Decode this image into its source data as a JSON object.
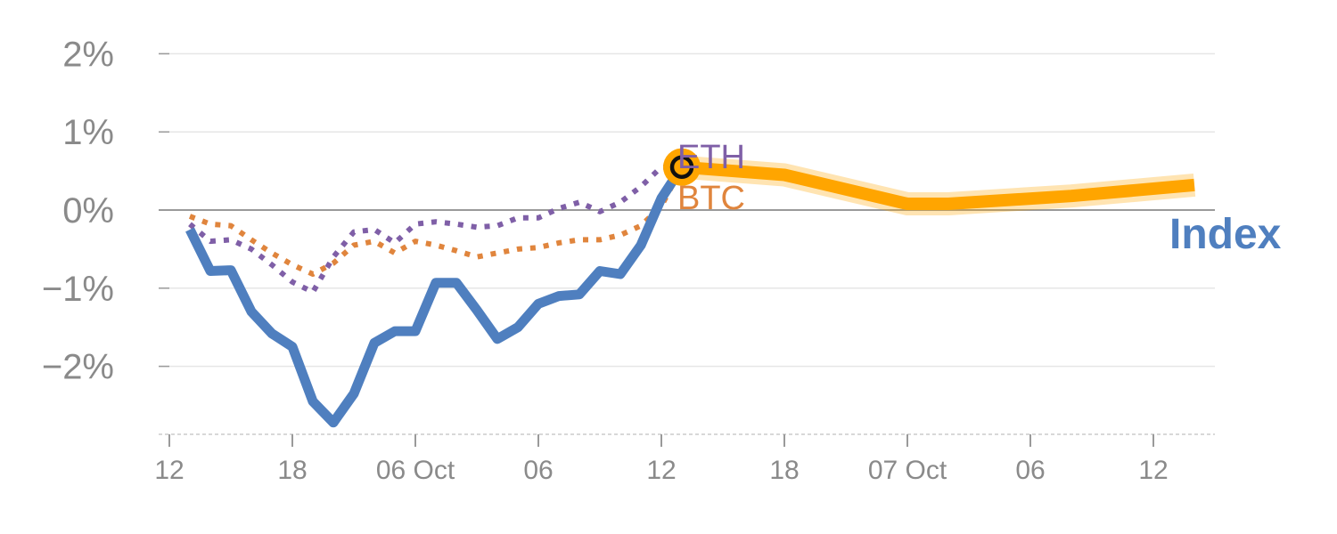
{
  "chart_data": {
    "type": "line",
    "ylim": [
      -2.8,
      2.2
    ],
    "y_ticks": [
      2,
      1,
      0,
      -1,
      -2
    ],
    "y_tick_labels": [
      "2%",
      "1%",
      "0%",
      "−1%",
      "−2%"
    ],
    "x_ticks": [
      0,
      6,
      12,
      18,
      24,
      30,
      36,
      42,
      48
    ],
    "x_tick_labels": [
      "12",
      "18",
      "06 Oct",
      "06",
      "12",
      "18",
      "07 Oct",
      "06",
      "12"
    ],
    "xlim": [
      -0.5,
      51
    ],
    "grid": true,
    "series": [
      {
        "name": "Index",
        "style": "solid",
        "color": "#4f7fbf",
        "x": [
          1,
          2,
          3,
          4,
          5,
          6,
          7,
          8,
          9,
          10,
          11,
          12,
          13,
          14,
          15,
          16,
          17,
          18,
          19,
          20,
          21,
          22,
          23,
          24,
          25
        ],
        "y": [
          -0.25,
          -0.78,
          -0.77,
          -1.3,
          -1.58,
          -1.75,
          -2.45,
          -2.72,
          -2.35,
          -1.7,
          -1.55,
          -1.55,
          -0.93,
          -0.93,
          -1.28,
          -1.65,
          -1.5,
          -1.2,
          -1.1,
          -1.08,
          -0.78,
          -0.82,
          -0.45,
          0.15,
          0.55
        ]
      },
      {
        "name": "ETH",
        "style": "dotted",
        "color": "#7f5fa7",
        "x": [
          1,
          2,
          3,
          4,
          5,
          6,
          7,
          8,
          9,
          10,
          11,
          12,
          13,
          14,
          15,
          16,
          17,
          18,
          19,
          20,
          21,
          22,
          23,
          24,
          25
        ],
        "y": [
          -0.18,
          -0.4,
          -0.38,
          -0.5,
          -0.7,
          -0.92,
          -1.05,
          -0.6,
          -0.28,
          -0.25,
          -0.42,
          -0.18,
          -0.15,
          -0.18,
          -0.22,
          -0.2,
          -0.1,
          -0.1,
          0.02,
          0.1,
          -0.02,
          0.1,
          0.3,
          0.55,
          0.55
        ]
      },
      {
        "name": "BTC",
        "style": "dotted",
        "color": "#e0853d",
        "x": [
          1,
          2,
          3,
          4,
          5,
          6,
          7,
          8,
          9,
          10,
          11,
          12,
          13,
          14,
          15,
          16,
          17,
          18,
          19,
          20,
          21,
          22,
          23,
          24,
          25
        ],
        "y": [
          -0.08,
          -0.18,
          -0.2,
          -0.38,
          -0.55,
          -0.7,
          -0.82,
          -0.68,
          -0.45,
          -0.4,
          -0.55,
          -0.4,
          -0.45,
          -0.52,
          -0.6,
          -0.55,
          -0.5,
          -0.48,
          -0.42,
          -0.38,
          -0.38,
          -0.32,
          -0.2,
          0.05,
          0.55
        ]
      },
      {
        "name": "",
        "style": "forecast",
        "color": "#ffa500",
        "x": [
          25,
          30,
          36,
          38,
          44,
          50
        ],
        "y": [
          0.55,
          0.45,
          0.08,
          0.08,
          0.18,
          0.32
        ]
      }
    ],
    "labels": {
      "index": "Index",
      "eth": "ETH",
      "btc": "BTC"
    },
    "current_marker": {
      "x": 25,
      "y": 0.55
    }
  }
}
